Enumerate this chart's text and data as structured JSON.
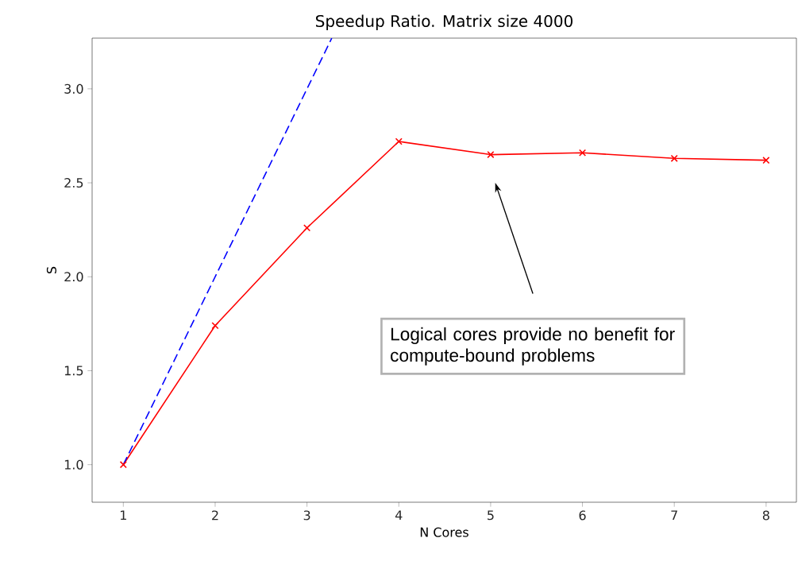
{
  "chart_data": {
    "type": "line",
    "title": "Speedup Ratio.  Matrix size 4000",
    "xlabel": "N Cores",
    "ylabel": "S",
    "x": [
      1,
      2,
      3,
      4,
      5,
      6,
      7,
      8
    ],
    "series": [
      {
        "color": "#ff0000",
        "values": [
          1.0,
          1.74,
          2.26,
          2.72,
          2.65,
          2.66,
          2.63,
          2.62
        ],
        "marker": "cross",
        "line_style": "solid"
      },
      {
        "color": "#0000ff",
        "x": [
          1,
          3.27
        ],
        "values": [
          1.0,
          3.27
        ],
        "marker": "none",
        "line_style": "dashed"
      }
    ],
    "xlim": [
      0.66,
      8.33
    ],
    "ylim": [
      0.8,
      3.27
    ],
    "xticks": [
      1,
      2,
      3,
      4,
      5,
      6,
      7,
      8
    ],
    "yticks": [
      {
        "value": 1.0,
        "label": "1.0"
      },
      1.5,
      {
        "value": 2.0,
        "label": "2.0"
      },
      2.5,
      {
        "value": 3.0,
        "label": "3.0"
      }
    ],
    "grid": false,
    "annotations": [
      "Logical cores provide no benefit for compute-bound problems"
    ]
  }
}
